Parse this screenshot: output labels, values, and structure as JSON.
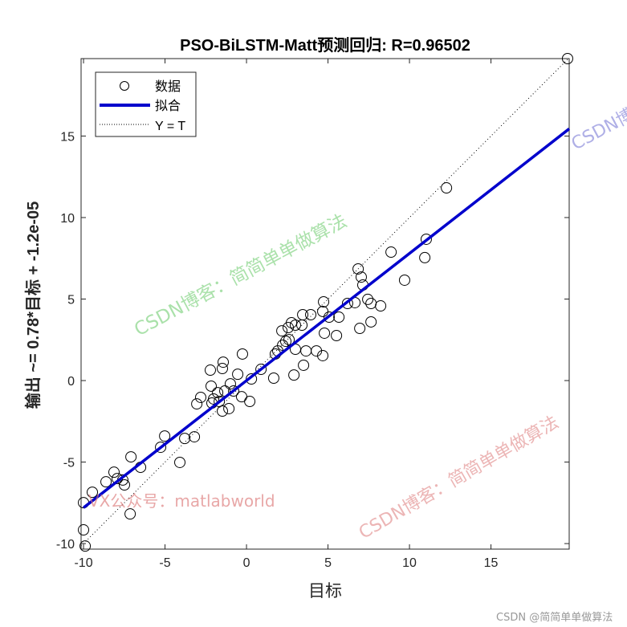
{
  "chart_data": {
    "type": "scatter",
    "title": "PSO-BiLSTM-Matt预测回归: R=0.96502",
    "xlabel": "目标",
    "ylabel": "输出 ~= 0.78*目标 + -1.2e-05",
    "xlim": [
      -10.15,
      19.8
    ],
    "ylim": [
      -10.34,
      19.75
    ],
    "xticks": [
      -10,
      -5,
      0,
      5,
      10,
      15
    ],
    "yticks": [
      -10,
      -5,
      0,
      5,
      10,
      15
    ],
    "grid": false,
    "legend_position": "top-left",
    "legend": [
      "数据",
      "拟合",
      "Y = T"
    ],
    "fit": {
      "slope": 0.78,
      "intercept": -1.2e-05,
      "color": "#0000cc"
    },
    "points": [
      [
        19.7,
        19.75
      ],
      [
        12.27,
        11.82
      ],
      [
        11.03,
        8.67
      ],
      [
        10.94,
        7.54
      ],
      [
        8.87,
        7.88
      ],
      [
        9.7,
        6.16
      ],
      [
        6.85,
        6.85
      ],
      [
        7.04,
        6.35
      ],
      [
        7.14,
        5.86
      ],
      [
        6.2,
        4.73
      ],
      [
        6.65,
        4.78
      ],
      [
        8.23,
        4.58
      ],
      [
        7.44,
        4.98
      ],
      [
        7.64,
        4.73
      ],
      [
        4.73,
        4.83
      ],
      [
        5.07,
        3.89
      ],
      [
        5.67,
        3.89
      ],
      [
        3.45,
        4.04
      ],
      [
        3.94,
        4.04
      ],
      [
        4.68,
        4.24
      ],
      [
        7.64,
        3.6
      ],
      [
        6.95,
        3.2
      ],
      [
        5.52,
        2.76
      ],
      [
        4.78,
        2.91
      ],
      [
        4.68,
        1.53
      ],
      [
        4.29,
        1.82
      ],
      [
        3.65,
        1.82
      ],
      [
        3.0,
        1.92
      ],
      [
        3.5,
        0.94
      ],
      [
        2.91,
        0.34
      ],
      [
        1.67,
        0.15
      ],
      [
        3.0,
        3.4
      ],
      [
        2.56,
        3.25
      ],
      [
        2.17,
        3.05
      ],
      [
        2.76,
        3.55
      ],
      [
        3.4,
        3.4
      ],
      [
        2.22,
        2.17
      ],
      [
        1.92,
        1.82
      ],
      [
        1.77,
        1.63
      ],
      [
        2.41,
        2.41
      ],
      [
        2.61,
        2.51
      ],
      [
        -0.25,
        1.63
      ],
      [
        0.89,
        0.69
      ],
      [
        -0.54,
        0.39
      ],
      [
        -1.48,
        0.74
      ],
      [
        -2.22,
        0.64
      ],
      [
        -1.43,
        1.13
      ],
      [
        0.3,
        0.1
      ],
      [
        -0.99,
        -0.2
      ],
      [
        -0.79,
        -0.64
      ],
      [
        -1.33,
        -0.64
      ],
      [
        -1.77,
        -0.74
      ],
      [
        -2.17,
        -0.34
      ],
      [
        -2.02,
        -1.13
      ],
      [
        -1.67,
        -1.28
      ],
      [
        -0.3,
        -0.99
      ],
      [
        0.2,
        -1.28
      ],
      [
        -1.08,
        -1.72
      ],
      [
        -1.48,
        -1.87
      ],
      [
        -2.81,
        -1.03
      ],
      [
        -3.05,
        -1.43
      ],
      [
        -2.12,
        -1.38
      ],
      [
        -3.2,
        -3.45
      ],
      [
        -3.79,
        -3.55
      ],
      [
        -5.02,
        -3.4
      ],
      [
        -5.27,
        -4.09
      ],
      [
        -4.09,
        -5.02
      ],
      [
        -6.5,
        -5.32
      ],
      [
        -7.09,
        -4.68
      ],
      [
        -8.13,
        -5.62
      ],
      [
        -7.93,
        -6.01
      ],
      [
        -8.62,
        -6.21
      ],
      [
        -7.49,
        -6.4
      ],
      [
        -7.59,
        -6.1
      ],
      [
        -7.14,
        -8.18
      ],
      [
        -9.46,
        -6.85
      ],
      [
        -10.0,
        -7.49
      ],
      [
        -10.0,
        -9.16
      ],
      [
        -9.9,
        -10.15
      ]
    ]
  },
  "watermarks": {
    "top": "CSDN博客：简简单单做算法",
    "middle": "CSDN博客：简简单单做算法",
    "right": "CSDN博",
    "left": "VX公众号：matlabworld",
    "footer": "CSDN @简简单单做算法"
  }
}
